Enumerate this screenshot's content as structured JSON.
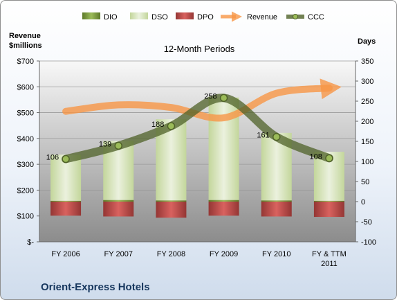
{
  "company": "Orient-Express Hotels",
  "chart_data": {
    "type": "bar",
    "title": "12-Month Periods",
    "left_axis_label_line1": "Revenue",
    "left_axis_label_line2": "$millions",
    "right_axis_label": "Days",
    "categories": [
      "FY 2006",
      "FY 2007",
      "FY 2008",
      "FY 2009",
      "FY 2010",
      "FY & TTM 2011"
    ],
    "left_ticks": [
      "$-",
      "$100",
      "$200",
      "$300",
      "$400",
      "$500",
      "$600",
      "$700"
    ],
    "right_ticks": [
      "-100",
      "-50",
      "0",
      "50",
      "100",
      "150",
      "200",
      "250",
      "300",
      "350"
    ],
    "left_ylim": [
      0,
      700
    ],
    "right_ylim": [
      -100,
      350
    ],
    "legend_placement": "top",
    "series": [
      {
        "name": "DIO",
        "axis": "days",
        "values": [
          2,
          4,
          3,
          4,
          3,
          2
        ],
        "color": "#77933c"
      },
      {
        "name": "DSO",
        "axis": "days",
        "values": [
          115,
          147,
          202,
          255,
          168,
          122
        ],
        "color": "#d7e4bd"
      },
      {
        "name": "DPO",
        "axis": "days",
        "values": [
          -35,
          -37,
          -40,
          -35,
          -37,
          -38
        ],
        "color": "#c0504d"
      },
      {
        "name": "Revenue",
        "axis": "revenue",
        "values": [
          505,
          530,
          520,
          480,
          575,
          595
        ],
        "color": "#f79646"
      },
      {
        "name": "CCC",
        "axis": "days",
        "values": [
          106,
          139,
          188,
          258,
          161,
          108
        ],
        "color": "#4f6228"
      }
    ],
    "ccc_labels": [
      "106",
      "139",
      "188",
      "258",
      "161",
      "108"
    ],
    "grid": true
  }
}
